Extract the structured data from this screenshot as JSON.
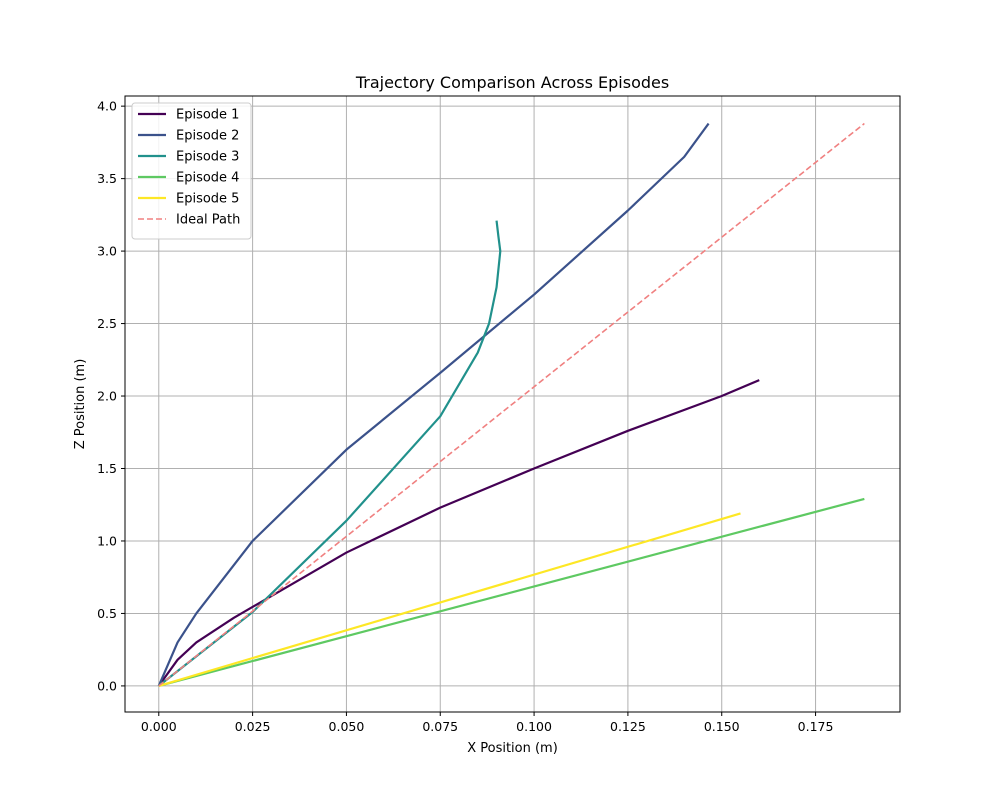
{
  "chart_data": {
    "type": "line",
    "title": "Trajectory Comparison Across Episodes",
    "xlabel": "X Position (m)",
    "ylabel": "Z Position (m)",
    "xlim": [
      -0.009,
      0.1975
    ],
    "ylim": [
      -0.18,
      4.07
    ],
    "xticks": [
      0.0,
      0.025,
      0.05,
      0.075,
      0.1,
      0.125,
      0.15,
      0.175
    ],
    "xtick_labels": [
      "0.000",
      "0.025",
      "0.050",
      "0.075",
      "0.100",
      "0.125",
      "0.150",
      "0.175"
    ],
    "yticks": [
      0.0,
      0.5,
      1.0,
      1.5,
      2.0,
      2.5,
      3.0,
      3.5,
      4.0
    ],
    "ytick_labels": [
      "0.0",
      "0.5",
      "1.0",
      "1.5",
      "2.0",
      "2.5",
      "3.0",
      "3.5",
      "4.0"
    ],
    "grid": true,
    "legend_position": "top-left",
    "series": [
      {
        "name": "Episode 1",
        "color": "#440154",
        "style": "solid",
        "points": [
          [
            0.0,
            0.0
          ],
          [
            0.005,
            0.18
          ],
          [
            0.01,
            0.3
          ],
          [
            0.02,
            0.47
          ],
          [
            0.03,
            0.62
          ],
          [
            0.05,
            0.92
          ],
          [
            0.075,
            1.23
          ],
          [
            0.1,
            1.5
          ],
          [
            0.125,
            1.76
          ],
          [
            0.15,
            2.0
          ],
          [
            0.16,
            2.11
          ]
        ]
      },
      {
        "name": "Episode 2",
        "color": "#3b528b",
        "style": "solid",
        "points": [
          [
            0.0,
            0.0
          ],
          [
            0.005,
            0.3
          ],
          [
            0.01,
            0.5
          ],
          [
            0.025,
            1.0
          ],
          [
            0.05,
            1.63
          ],
          [
            0.075,
            2.16
          ],
          [
            0.1,
            2.7
          ],
          [
            0.125,
            3.28
          ],
          [
            0.14,
            3.65
          ],
          [
            0.1465,
            3.88
          ]
        ]
      },
      {
        "name": "Episode 3",
        "color": "#21918c",
        "style": "solid",
        "points": [
          [
            0.0,
            0.0
          ],
          [
            0.025,
            0.51
          ],
          [
            0.05,
            1.14
          ],
          [
            0.075,
            1.86
          ],
          [
            0.085,
            2.3
          ],
          [
            0.088,
            2.5
          ],
          [
            0.09,
            2.75
          ],
          [
            0.091,
            3.0
          ],
          [
            0.0905,
            3.1
          ],
          [
            0.09,
            3.21
          ]
        ]
      },
      {
        "name": "Episode 4",
        "color": "#5ec962",
        "style": "solid",
        "points": [
          [
            0.0,
            0.0
          ],
          [
            0.188,
            1.29
          ]
        ]
      },
      {
        "name": "Episode 5",
        "color": "#fde725",
        "style": "solid",
        "points": [
          [
            0.0,
            0.0
          ],
          [
            0.155,
            1.19
          ]
        ]
      },
      {
        "name": "Ideal Path",
        "color": "#f08080",
        "style": "dashed",
        "points": [
          [
            0.0,
            0.0
          ],
          [
            0.188,
            3.88
          ]
        ]
      }
    ]
  }
}
